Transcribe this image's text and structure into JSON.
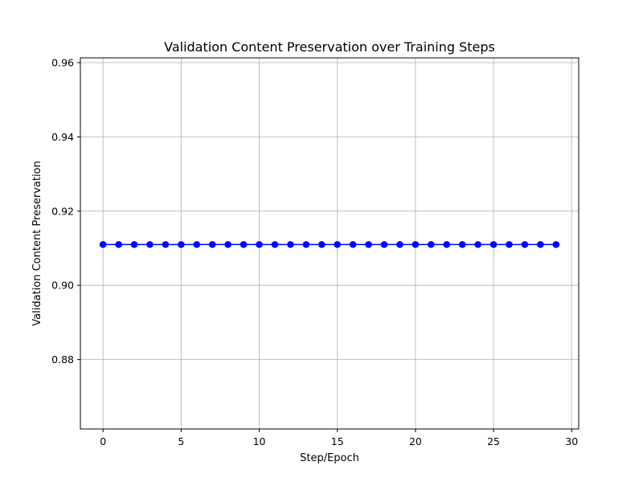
{
  "chart_data": {
    "type": "line",
    "title": "Validation Content Preservation over Training Steps",
    "xlabel": "Step/Epoch",
    "ylabel": "Validation Content Preservation",
    "xlim": [
      -1.45,
      30.45
    ],
    "ylim": [
      0.8613,
      0.9613
    ],
    "xticks": [
      0,
      5,
      10,
      15,
      20,
      25,
      30
    ],
    "yticks": [
      0.88,
      0.9,
      0.92,
      0.94,
      0.96
    ],
    "xtick_labels": [
      "0",
      "5",
      "10",
      "15",
      "20",
      "25",
      "30"
    ],
    "ytick_labels": [
      "0.88",
      "0.90",
      "0.92",
      "0.94",
      "0.96"
    ],
    "grid": true,
    "marker": "circle",
    "color": "#0000ff",
    "series": [
      {
        "x": [
          0,
          1,
          2,
          3,
          4,
          5,
          6,
          7,
          8,
          9,
          10,
          11,
          12,
          13,
          14,
          15,
          16,
          17,
          18,
          19,
          20,
          21,
          22,
          23,
          24,
          25,
          26,
          27,
          28,
          29
        ],
        "y": [
          0.911,
          0.911,
          0.911,
          0.911,
          0.911,
          0.911,
          0.911,
          0.911,
          0.911,
          0.911,
          0.911,
          0.911,
          0.911,
          0.911,
          0.911,
          0.911,
          0.911,
          0.911,
          0.911,
          0.911,
          0.911,
          0.911,
          0.911,
          0.911,
          0.911,
          0.911,
          0.911,
          0.911,
          0.911,
          0.911
        ]
      }
    ]
  }
}
